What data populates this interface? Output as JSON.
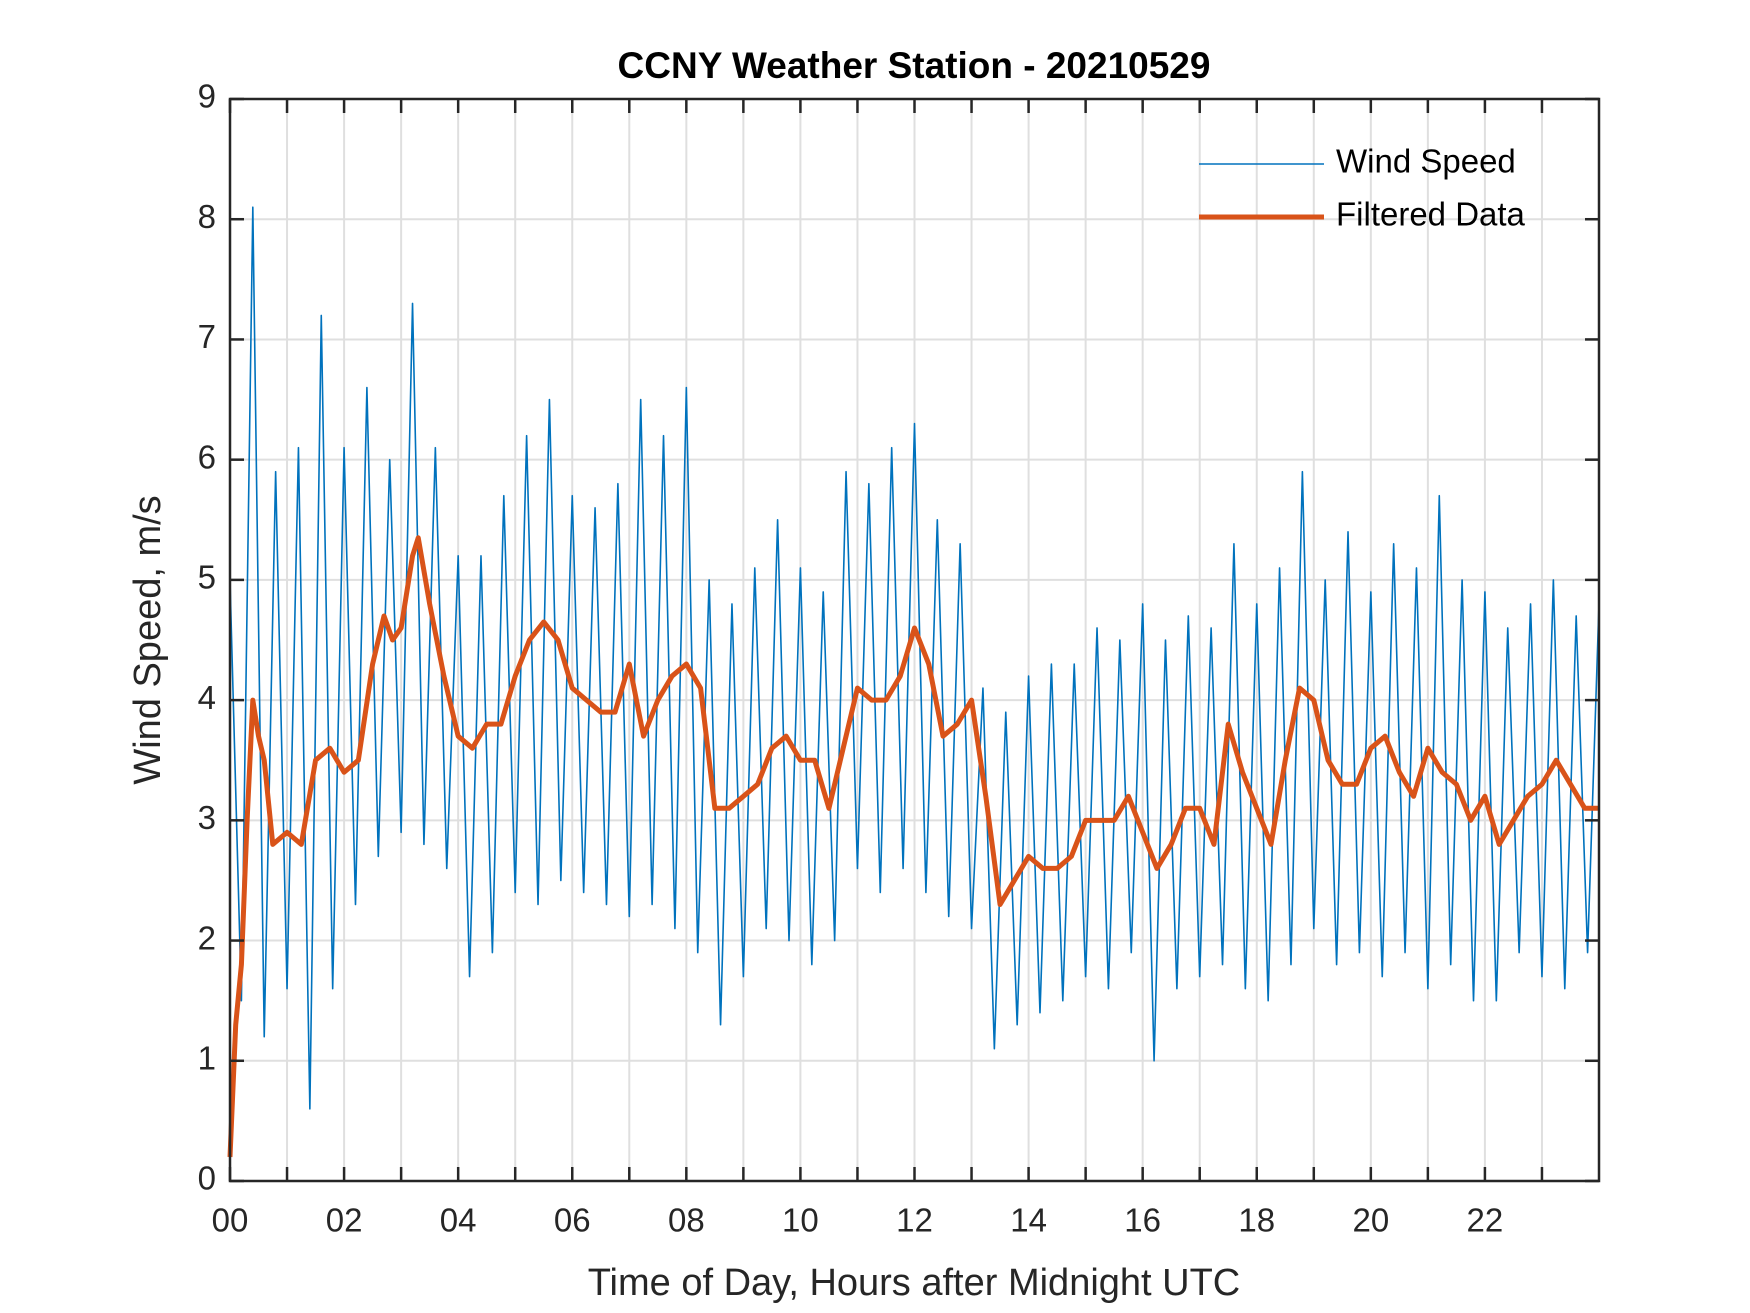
{
  "chart_data": {
    "type": "line",
    "title": "CCNY Weather Station - 20210529",
    "xlabel": "Time of Day, Hours after Midnight UTC",
    "ylabel": "Wind Speed, m/s",
    "xlim": [
      0,
      24
    ],
    "ylim": [
      0,
      9
    ],
    "xticks": [
      {
        "value": 0,
        "label": "00"
      },
      {
        "value": 2,
        "label": "02"
      },
      {
        "value": 4,
        "label": "04"
      },
      {
        "value": 6,
        "label": "06"
      },
      {
        "value": 8,
        "label": "08"
      },
      {
        "value": 10,
        "label": "10"
      },
      {
        "value": 12,
        "label": "12"
      },
      {
        "value": 14,
        "label": "14"
      },
      {
        "value": 16,
        "label": "16"
      },
      {
        "value": 18,
        "label": "18"
      },
      {
        "value": 20,
        "label": "20"
      },
      {
        "value": 22,
        "label": "22"
      }
    ],
    "xminorticks": [
      1,
      3,
      5,
      7,
      9,
      11,
      13,
      15,
      17,
      19,
      21,
      23
    ],
    "yticks": [
      0,
      1,
      2,
      3,
      4,
      5,
      6,
      7,
      8,
      9
    ],
    "grid": true,
    "legend": "top-right",
    "series": [
      {
        "name": "Wind Speed",
        "color": "#0072BD",
        "x": [
          0,
          0.2,
          0.4,
          0.6,
          0.8,
          1,
          1.2,
          1.4,
          1.6,
          1.8,
          2,
          2.2,
          2.4,
          2.6,
          2.8,
          3,
          3.2,
          3.4,
          3.6,
          3.8,
          4,
          4.2,
          4.4,
          4.6,
          4.8,
          5,
          5.2,
          5.4,
          5.6,
          5.8,
          6,
          6.2,
          6.4,
          6.6,
          6.8,
          7,
          7.2,
          7.4,
          7.6,
          7.8,
          8,
          8.2,
          8.4,
          8.6,
          8.8,
          9,
          9.2,
          9.4,
          9.6,
          9.8,
          10,
          10.2,
          10.4,
          10.6,
          10.8,
          11,
          11.2,
          11.4,
          11.6,
          11.8,
          12,
          12.2,
          12.4,
          12.6,
          12.8,
          13,
          13.2,
          13.4,
          13.6,
          13.8,
          14,
          14.2,
          14.4,
          14.6,
          14.8,
          15,
          15.2,
          15.4,
          15.6,
          15.8,
          16,
          16.2,
          16.4,
          16.6,
          16.8,
          17,
          17.2,
          17.4,
          17.6,
          17.8,
          18,
          18.2,
          18.4,
          18.6,
          18.8,
          19,
          19.2,
          19.4,
          19.6,
          19.8,
          20,
          20.2,
          20.4,
          20.6,
          20.8,
          21,
          21.2,
          21.4,
          21.6,
          21.8,
          22,
          22.2,
          22.4,
          22.6,
          22.8,
          23,
          23.2,
          23.4,
          23.6,
          23.8,
          24
        ],
        "values": [
          5.0,
          1.5,
          8.1,
          1.2,
          5.9,
          1.6,
          6.1,
          0.6,
          7.2,
          1.6,
          6.1,
          2.3,
          6.6,
          2.7,
          6.0,
          2.9,
          7.3,
          2.8,
          6.1,
          2.6,
          5.2,
          1.7,
          5.2,
          1.9,
          5.7,
          2.4,
          6.2,
          2.3,
          6.5,
          2.5,
          5.7,
          2.4,
          5.6,
          2.3,
          5.8,
          2.2,
          6.5,
          2.3,
          6.2,
          2.1,
          6.6,
          1.9,
          5.0,
          1.3,
          4.8,
          1.7,
          5.1,
          2.1,
          5.5,
          2.0,
          5.1,
          1.8,
          4.9,
          2.0,
          5.9,
          2.6,
          5.8,
          2.4,
          6.1,
          2.6,
          6.3,
          2.4,
          5.5,
          2.2,
          5.3,
          2.1,
          4.1,
          1.1,
          3.9,
          1.3,
          4.2,
          1.4,
          4.3,
          1.5,
          4.3,
          1.7,
          4.6,
          1.6,
          4.5,
          1.9,
          4.8,
          1.0,
          4.5,
          1.6,
          4.7,
          1.7,
          4.6,
          1.8,
          5.3,
          1.6,
          4.8,
          1.5,
          5.1,
          1.8,
          5.9,
          2.1,
          5.0,
          1.8,
          5.4,
          1.9,
          4.9,
          1.7,
          5.3,
          1.9,
          5.1,
          1.6,
          5.7,
          1.8,
          5.0,
          1.5,
          4.9,
          1.5,
          4.6,
          1.9,
          4.8,
          1.7,
          5.0,
          1.6,
          4.7,
          1.9,
          4.8
        ]
      },
      {
        "name": "Filtered Data",
        "color": "#D95319",
        "x": [
          0,
          0.1,
          0.2,
          0.3,
          0.4,
          0.5,
          0.6,
          0.75,
          1,
          1.25,
          1.5,
          1.75,
          2,
          2.25,
          2.5,
          2.7,
          2.85,
          3,
          3.2,
          3.3,
          3.5,
          3.75,
          4,
          4.25,
          4.5,
          4.75,
          5,
          5.25,
          5.5,
          5.75,
          6,
          6.25,
          6.5,
          6.75,
          7,
          7.25,
          7.5,
          7.75,
          8,
          8.25,
          8.5,
          8.75,
          9,
          9.25,
          9.5,
          9.75,
          10,
          10.25,
          10.5,
          10.75,
          11,
          11.25,
          11.5,
          11.75,
          12,
          12.25,
          12.5,
          12.75,
          13,
          13.25,
          13.5,
          13.75,
          14,
          14.25,
          14.5,
          14.75,
          15,
          15.25,
          15.5,
          15.75,
          16,
          16.25,
          16.5,
          16.75,
          17,
          17.25,
          17.5,
          17.75,
          18,
          18.25,
          18.5,
          18.75,
          19,
          19.25,
          19.5,
          19.75,
          20,
          20.25,
          20.5,
          20.75,
          21,
          21.25,
          21.5,
          21.75,
          22,
          22.25,
          22.5,
          22.75,
          23,
          23.25,
          23.5,
          23.75,
          24
        ],
        "values": [
          0.2,
          1.3,
          1.8,
          3.0,
          4.0,
          3.7,
          3.5,
          2.8,
          2.9,
          2.8,
          3.5,
          3.6,
          3.4,
          3.5,
          4.3,
          4.7,
          4.5,
          4.6,
          5.2,
          5.35,
          4.8,
          4.2,
          3.7,
          3.6,
          3.8,
          3.8,
          4.2,
          4.5,
          4.65,
          4.5,
          4.1,
          4.0,
          3.9,
          3.9,
          4.3,
          3.7,
          4.0,
          4.2,
          4.3,
          4.1,
          3.1,
          3.1,
          3.2,
          3.3,
          3.6,
          3.7,
          3.5,
          3.5,
          3.1,
          3.6,
          4.1,
          4.0,
          4.0,
          4.2,
          4.6,
          4.3,
          3.7,
          3.8,
          4.0,
          3.2,
          2.3,
          2.5,
          2.7,
          2.6,
          2.6,
          2.7,
          3.0,
          3.0,
          3.0,
          3.2,
          2.9,
          2.6,
          2.8,
          3.1,
          3.1,
          2.8,
          3.8,
          3.4,
          3.1,
          2.8,
          3.5,
          4.1,
          4.0,
          3.5,
          3.3,
          3.3,
          3.6,
          3.7,
          3.4,
          3.2,
          3.6,
          3.4,
          3.3,
          3.0,
          3.2,
          2.8,
          3.0,
          3.2,
          3.3,
          3.5,
          3.3,
          3.1,
          3.1
        ]
      }
    ]
  }
}
